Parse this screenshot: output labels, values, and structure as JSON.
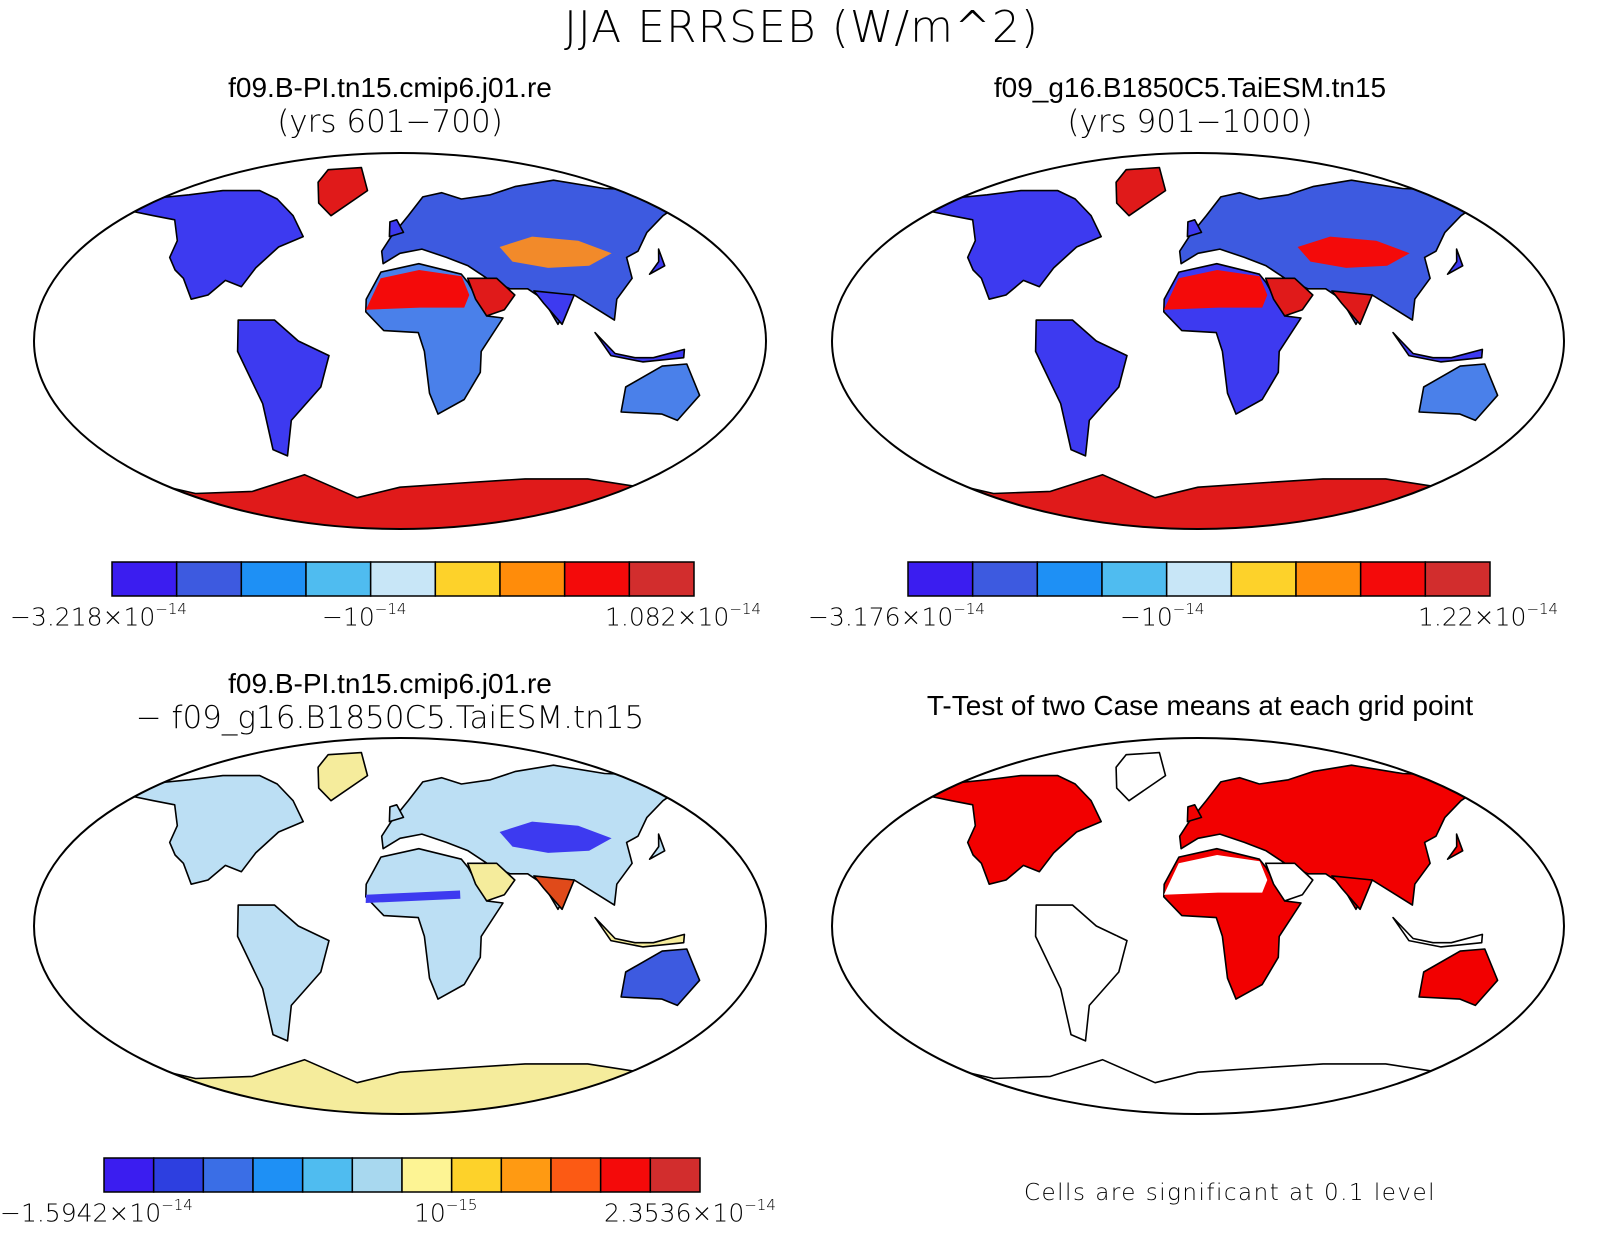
{
  "figure": {
    "title": "JJA ERRSEB (W/m^2)"
  },
  "panels": [
    {
      "id": "case1",
      "title_line1": "f09.B-PI.tn15.cmip6.j01.re",
      "title_line2": "(yrs 601−700)",
      "colorbar": {
        "colors": [
          "#3b1df0",
          "#3d5ae0",
          "#1e90f5",
          "#4fbcf0",
          "#c8e6f7",
          "#fdd22a",
          "#ff8c0a",
          "#f40a0a",
          "#d22d2d"
        ],
        "label_left_mant": "−3.218×10",
        "label_left_exp": "−14",
        "label_mid_mant": "−10",
        "label_mid_exp": "−14",
        "label_right_mant": "1.082×10",
        "label_right_exp": "−14"
      }
    },
    {
      "id": "case2",
      "title_line1": "f09_g16.B1850C5.TaiESM.tn15",
      "title_line2": "(yrs 901−1000)",
      "colorbar": {
        "colors": [
          "#3b1df0",
          "#3d5ae0",
          "#1e90f5",
          "#4fbcf0",
          "#c8e6f7",
          "#fdd22a",
          "#ff8c0a",
          "#f40a0a",
          "#d22d2d"
        ],
        "label_left_mant": "−3.176×10",
        "label_left_exp": "−14",
        "label_mid_mant": "−10",
        "label_mid_exp": "−14",
        "label_right_mant": "1.22×10",
        "label_right_exp": "−14"
      }
    },
    {
      "id": "difference",
      "title_line1": "f09.B-PI.tn15.cmip6.j01.re",
      "title_line2": "− f09_g16.B1850C5.TaiESM.tn15",
      "colorbar": {
        "colors": [
          "#3b1df0",
          "#2d3fe0",
          "#3a6ee6",
          "#1e90f5",
          "#4fbcf0",
          "#a8d8ef",
          "#fdf494",
          "#fdd22a",
          "#ff9a12",
          "#fc5a14",
          "#f40a0a",
          "#d22d2d"
        ],
        "label_left_mant": "−1.5942×10",
        "label_left_exp": "−14",
        "label_mid_mant": "10",
        "label_mid_exp": "−15",
        "label_right_mant": "2.3536×10",
        "label_right_exp": "−14"
      }
    },
    {
      "id": "ttest",
      "title_line1": "T-Test of two Case means at each grid point",
      "note": "Cells are significant at 0.1 level"
    }
  ],
  "map_colors": {
    "cold": "#3d3af0",
    "cool": "#4a80ea",
    "light": "#bcdff4",
    "pale_yellow": "#f5ec9c",
    "warm": "#f40a0a",
    "dark_red": "#d22d2d",
    "sig_red": "#f20000"
  }
}
